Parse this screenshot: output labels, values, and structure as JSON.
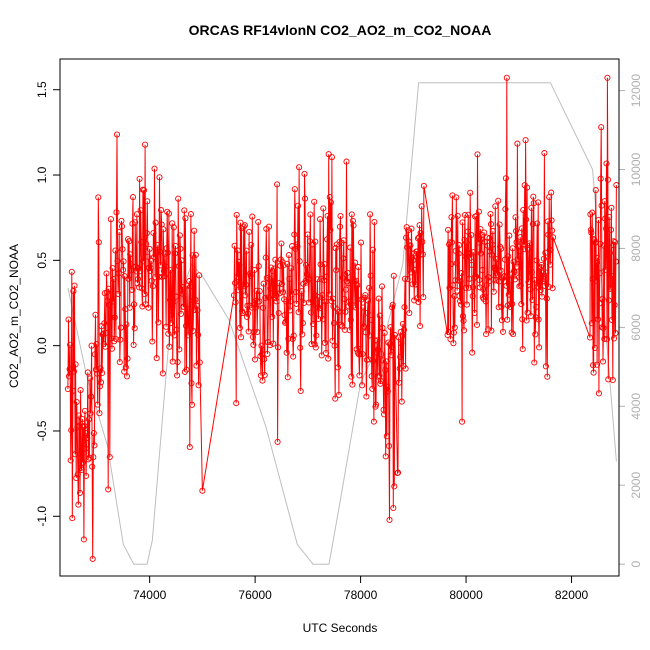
{
  "chart_data": {
    "type": "line",
    "title": "ORCAS RF14vlonN CO2_AO2_m_CO2_NOAA",
    "xlabel": "UTC Seconds",
    "ylabel": "CO2_AO2_m_CO2_NOAA",
    "xlim": [
      72300,
      82900
    ],
    "ylim": [
      -1.35,
      1.68
    ],
    "y2lim": [
      -300,
      12800
    ],
    "x_ticks": [
      "74000",
      "76000",
      "78000",
      "80000",
      "82000"
    ],
    "y_ticks": [
      "-1.0",
      "-0.5",
      "0.0",
      "0.5",
      "1.0",
      "1.5"
    ],
    "y2_ticks": [
      "0",
      "2000",
      "4000",
      "6000",
      "8000",
      "10000",
      "12000"
    ],
    "grid": false,
    "legend": "none",
    "colors": {
      "primary": "#ff0000",
      "secondary": "#bebebe",
      "axes": "#000000",
      "secondary_axis": "#b0b0b0"
    },
    "series": [
      {
        "axis": "left",
        "style": "lines+open-circles",
        "segments": [
          {
            "x0": 72450,
            "x1": 74950,
            "spikes": 240,
            "seed": 11,
            "knots": [
              [
                72450,
                0.1
              ],
              [
                72700,
                -0.6
              ],
              [
                72950,
                -0.3
              ],
              [
                73300,
                0.25
              ],
              [
                73700,
                0.45
              ],
              [
                74200,
                0.4
              ],
              [
                74600,
                0.35
              ],
              [
                74950,
                0.15
              ]
            ],
            "spread": 0.35
          },
          {
            "x0": 75000,
            "x1": 75000,
            "spikes": 1,
            "seed": 3,
            "knots": [
              [
                75000,
                -0.85
              ]
            ],
            "spread": 0.0
          },
          {
            "x0": 75600,
            "x1": 78650,
            "spikes": 300,
            "seed": 23,
            "knots": [
              [
                75600,
                0.45
              ],
              [
                76000,
                0.3
              ],
              [
                76600,
                0.35
              ],
              [
                77200,
                0.3
              ],
              [
                77700,
                0.3
              ],
              [
                78100,
                0.15
              ],
              [
                78500,
                -0.2
              ],
              [
                78650,
                0.05
              ]
            ],
            "spread": 0.3
          },
          {
            "x0": 78700,
            "x1": 79200,
            "spikes": 50,
            "seed": 31,
            "knots": [
              [
                78700,
                -0.3
              ],
              [
                78900,
                0.4
              ],
              [
                79100,
                0.55
              ],
              [
                79200,
                0.6
              ]
            ],
            "spread": 0.25
          },
          {
            "x0": 79650,
            "x1": 81650,
            "spikes": 220,
            "seed": 47,
            "knots": [
              [
                79650,
                0.4
              ],
              [
                80000,
                0.5
              ],
              [
                80500,
                0.55
              ],
              [
                81000,
                0.5
              ],
              [
                81400,
                0.45
              ],
              [
                81650,
                0.55
              ]
            ],
            "spread": 0.3
          },
          {
            "x0": 82350,
            "x1": 82850,
            "spikes": 60,
            "seed": 59,
            "knots": [
              [
                82350,
                0.3
              ],
              [
                82600,
                0.6
              ],
              [
                82850,
                0.5
              ]
            ],
            "spread": 0.4
          }
        ]
      },
      {
        "axis": "right",
        "style": "line",
        "x": [
          72450,
          72800,
          73200,
          73500,
          73700,
          73950,
          74050,
          74400,
          74800,
          75000,
          75500,
          76200,
          76800,
          77100,
          77400,
          77600,
          78000,
          78500,
          78800,
          79100,
          80000,
          80500,
          81000,
          81600,
          82400,
          82850
        ],
        "y": [
          7000,
          4800,
          3000,
          500,
          0,
          0,
          600,
          6200,
          7600,
          7300,
          6200,
          3500,
          500,
          0,
          0,
          1500,
          4600,
          6000,
          7600,
          12200,
          12200,
          12200,
          12200,
          12200,
          10000,
          2600
        ]
      }
    ]
  }
}
